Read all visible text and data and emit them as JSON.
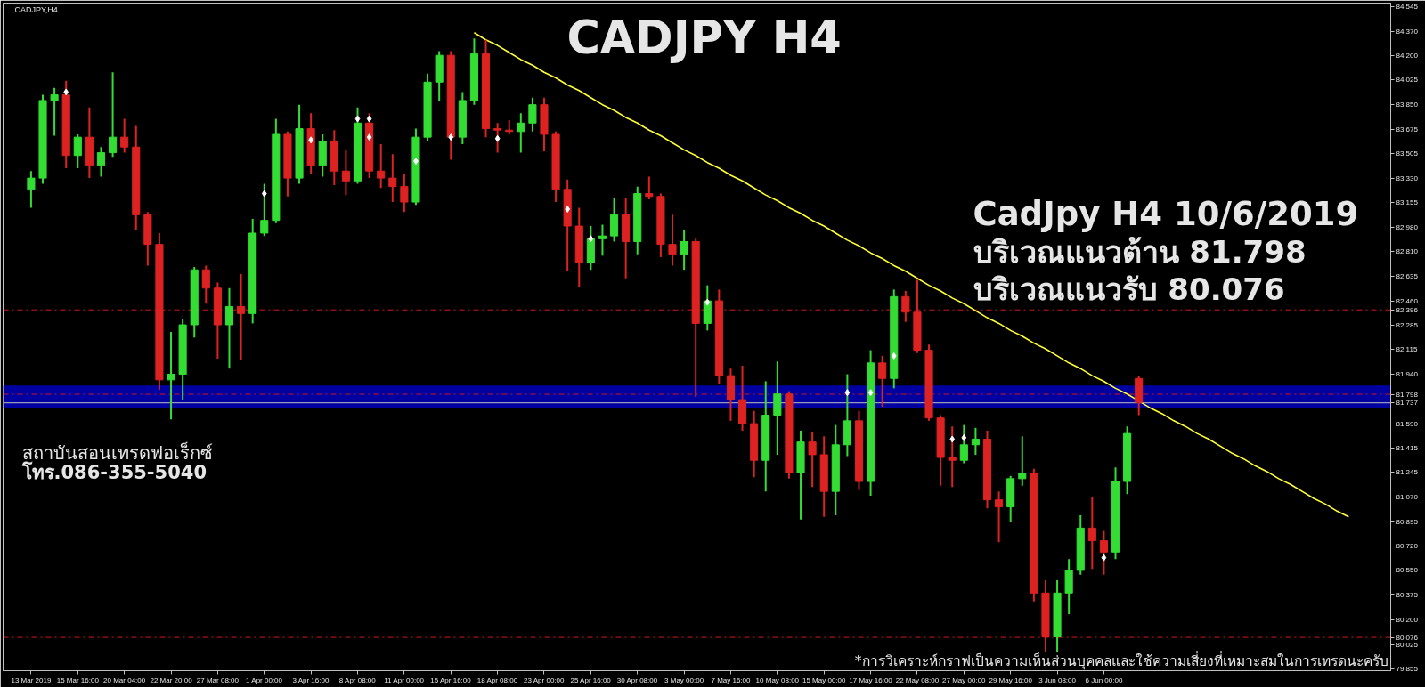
{
  "chart_data": {
    "type": "candlestick",
    "title": "CADJPY  H4",
    "ylim": [
      79.84,
      84.57
    ],
    "yticks": [
      84.545,
      {
        "value": 84.37,
        "label": "84.370"
      },
      {
        "value": 84.2,
        "label": "84.200"
      },
      84.025,
      {
        "value": 83.85,
        "label": "83.850"
      },
      83.675,
      83.505,
      {
        "value": 83.33,
        "label": "83.330"
      },
      83.155,
      {
        "value": 82.98,
        "label": "82.980"
      },
      {
        "value": 82.81,
        "label": "82.810"
      },
      82.635,
      {
        "value": 82.46,
        "label": "82.460"
      },
      82.285,
      82.115,
      {
        "value": 81.94,
        "label": "81.940"
      },
      {
        "value": 81.59,
        "label": "81.590"
      },
      81.415,
      81.245,
      {
        "value": 81.07,
        "label": "81.070"
      },
      80.895,
      {
        "value": 80.72,
        "label": "80.720"
      },
      {
        "value": 80.55,
        "label": "80.550"
      },
      80.375,
      {
        "value": 80.2,
        "label": "80.200"
      },
      80.025,
      79.855
    ],
    "categories": [
      "13 Mar 2019",
      null,
      null,
      null,
      "15 Mar 16:00",
      null,
      null,
      null,
      "20 Mar 04:00",
      null,
      null,
      null,
      "22 Mar 20:00",
      null,
      null,
      null,
      "27 Mar 08:00",
      null,
      null,
      null,
      "1 Apr 00:00",
      null,
      null,
      null,
      "3 Apr 16:00",
      null,
      null,
      null,
      "8 Apr 08:00",
      null,
      null,
      null,
      "11 Apr 00:00",
      null,
      null,
      null,
      "15 Apr 16:00",
      null,
      null,
      null,
      "18 Apr 08:00",
      null,
      null,
      null,
      "23 Apr 00:00",
      null,
      null,
      null,
      "25 Apr 16:00",
      null,
      null,
      null,
      "30 Apr 08:00",
      null,
      null,
      null,
      "3 May 00:00",
      null,
      null,
      null,
      "7 May 16:00",
      null,
      null,
      null,
      "10 May 08:00",
      null,
      null,
      null,
      "15 May 00:00",
      null,
      null,
      null,
      "17 May 16:00",
      null,
      null,
      null,
      "22 May 08:00",
      null,
      null,
      null,
      "27 May 00:00",
      null,
      null,
      null,
      "29 May 16:00",
      null,
      null,
      null,
      "3 Jun 08:00",
      null,
      null,
      null,
      "6 Jun 00:00",
      null,
      null,
      null,
      null,
      null,
      null,
      null,
      null,
      null,
      null,
      null,
      null,
      null,
      null,
      null,
      null,
      null,
      null,
      null,
      null,
      null,
      null,
      null,
      null
    ],
    "ohlc": [
      [
        83.25,
        83.38,
        83.12,
        83.33
      ],
      [
        83.33,
        83.92,
        83.29,
        83.88
      ],
      [
        83.88,
        83.97,
        83.63,
        83.92
      ],
      [
        83.92,
        84.02,
        83.4,
        83.49
      ],
      [
        83.49,
        83.64,
        83.4,
        83.62
      ],
      [
        83.62,
        83.83,
        83.33,
        83.42
      ],
      [
        83.42,
        83.55,
        83.34,
        83.51
      ],
      [
        83.51,
        84.08,
        83.48,
        83.62
      ],
      [
        83.62,
        83.75,
        83.51,
        83.55
      ],
      [
        83.55,
        83.7,
        82.96,
        83.07
      ],
      [
        83.07,
        83.09,
        82.71,
        82.86
      ],
      [
        82.86,
        82.94,
        81.83,
        81.9
      ],
      [
        81.9,
        82.24,
        81.62,
        81.94
      ],
      [
        81.94,
        82.33,
        81.76,
        82.29
      ],
      [
        82.29,
        82.7,
        82.2,
        82.68
      ],
      [
        82.68,
        82.71,
        82.44,
        82.55
      ],
      [
        82.55,
        82.59,
        82.05,
        82.29
      ],
      [
        82.29,
        82.55,
        81.98,
        82.42
      ],
      [
        82.42,
        82.65,
        82.04,
        82.37
      ],
      [
        82.37,
        83.04,
        82.3,
        82.94
      ],
      [
        82.94,
        83.29,
        82.92,
        83.03
      ],
      [
        83.03,
        83.75,
        83.01,
        83.64
      ],
      [
        83.64,
        83.66,
        83.2,
        83.33
      ],
      [
        83.33,
        83.85,
        83.29,
        83.68
      ],
      [
        83.68,
        83.79,
        83.36,
        83.42
      ],
      [
        83.42,
        83.64,
        83.34,
        83.59
      ],
      [
        83.59,
        83.67,
        83.28,
        83.38
      ],
      [
        83.38,
        83.53,
        83.21,
        83.31
      ],
      [
        83.31,
        83.83,
        83.29,
        83.72
      ],
      [
        83.72,
        83.79,
        83.33,
        83.38
      ],
      [
        83.38,
        83.57,
        83.26,
        83.33
      ],
      [
        83.33,
        83.5,
        83.16,
        83.27
      ],
      [
        83.27,
        83.36,
        83.09,
        83.16
      ],
      [
        83.16,
        83.68,
        83.14,
        83.62
      ],
      [
        83.62,
        84.07,
        83.59,
        84.01
      ],
      [
        84.01,
        84.23,
        83.88,
        84.2
      ],
      [
        84.2,
        84.23,
        83.46,
        83.62
      ],
      [
        83.62,
        83.94,
        83.57,
        83.88
      ],
      [
        83.88,
        84.32,
        83.85,
        84.21
      ],
      [
        84.21,
        84.31,
        83.62,
        83.68
      ],
      [
        83.68,
        83.72,
        83.51,
        83.67
      ],
      [
        83.67,
        83.74,
        83.64,
        83.66
      ],
      [
        83.66,
        83.79,
        83.51,
        83.72
      ],
      [
        83.72,
        83.9,
        83.66,
        83.85
      ],
      [
        83.85,
        83.9,
        83.52,
        83.64
      ],
      [
        83.64,
        83.66,
        83.16,
        83.25
      ],
      [
        83.25,
        83.32,
        82.67,
        82.99
      ],
      [
        82.99,
        83.12,
        82.56,
        82.73
      ],
      [
        82.73,
        82.99,
        82.68,
        82.9
      ],
      [
        82.9,
        83.0,
        82.78,
        82.92
      ],
      [
        82.92,
        83.19,
        82.88,
        83.07
      ],
      [
        83.07,
        83.19,
        82.62,
        82.88
      ],
      [
        82.88,
        83.27,
        82.79,
        83.22
      ],
      [
        83.22,
        83.34,
        83.18,
        83.2
      ],
      [
        83.2,
        83.22,
        82.77,
        82.86
      ],
      [
        82.86,
        83.07,
        82.71,
        82.79
      ],
      [
        82.79,
        82.96,
        82.68,
        82.88
      ],
      [
        82.88,
        82.9,
        81.78,
        82.3
      ],
      [
        82.3,
        82.57,
        82.25,
        82.46
      ],
      [
        82.46,
        82.54,
        81.87,
        81.93
      ],
      [
        81.93,
        81.98,
        81.61,
        81.76
      ],
      [
        81.76,
        82.0,
        81.54,
        81.59
      ],
      [
        81.59,
        81.68,
        81.21,
        81.33
      ],
      [
        81.33,
        81.89,
        81.11,
        81.65
      ],
      [
        81.65,
        82.03,
        81.37,
        81.8
      ],
      [
        81.8,
        81.82,
        81.2,
        81.24
      ],
      [
        81.24,
        81.54,
        80.91,
        81.46
      ],
      [
        81.46,
        81.53,
        81.14,
        81.37
      ],
      [
        81.37,
        81.5,
        80.93,
        81.11
      ],
      [
        81.11,
        81.58,
        80.94,
        81.44
      ],
      [
        81.44,
        81.94,
        81.36,
        81.61
      ],
      [
        81.61,
        81.68,
        81.12,
        81.18
      ],
      [
        81.18,
        82.11,
        81.08,
        82.02
      ],
      [
        82.02,
        82.07,
        81.71,
        81.91
      ],
      [
        81.91,
        82.54,
        81.84,
        82.49
      ],
      [
        82.49,
        82.53,
        82.31,
        82.38
      ],
      [
        82.38,
        82.61,
        82.09,
        82.11
      ],
      [
        82.11,
        82.15,
        81.61,
        81.63
      ],
      [
        81.63,
        81.65,
        81.15,
        81.35
      ],
      [
        81.35,
        81.57,
        81.14,
        81.33
      ],
      [
        81.33,
        81.58,
        81.31,
        81.44
      ],
      [
        81.44,
        81.56,
        81.37,
        81.48
      ],
      [
        81.48,
        81.54,
        80.99,
        81.05
      ],
      [
        81.05,
        81.11,
        80.75,
        81.0
      ],
      [
        81.0,
        81.22,
        80.89,
        81.2
      ],
      [
        81.2,
        81.5,
        81.15,
        81.24
      ],
      [
        81.24,
        81.27,
        80.33,
        80.39
      ],
      [
        80.39,
        80.48,
        79.97,
        80.08
      ],
      [
        80.08,
        80.48,
        79.97,
        80.39
      ],
      [
        80.39,
        80.63,
        80.24,
        80.55
      ],
      [
        80.55,
        80.94,
        80.52,
        80.85
      ],
      [
        80.85,
        81.07,
        80.56,
        80.76
      ],
      [
        80.76,
        80.83,
        80.52,
        80.68
      ],
      [
        80.68,
        81.28,
        80.63,
        81.18
      ],
      [
        81.18,
        81.57,
        81.09,
        81.52
      ],
      [
        81.91,
        81.93,
        81.65,
        81.74
      ],
      null,
      null,
      null,
      null,
      null,
      null,
      null,
      null,
      null,
      null,
      null,
      null,
      null,
      null,
      null,
      null,
      null,
      null,
      null,
      null,
      null
    ],
    "colors": [
      "#33dd33",
      "#33dd33",
      "#33dd33",
      "#dd2222",
      "#33dd33",
      "#dd2222",
      "#33dd33",
      "#33dd33",
      "#dd2222",
      "#dd2222",
      "#dd2222",
      "#dd2222",
      "#33dd33",
      "#33dd33",
      "#33dd33",
      "#dd2222",
      "#dd2222",
      "#33dd33",
      "#dd2222",
      "#33dd33",
      "#33dd33",
      "#33dd33",
      "#dd2222",
      "#33dd33",
      "#dd2222",
      "#33dd33",
      "#dd2222",
      "#dd2222",
      "#33dd33",
      "#dd2222",
      "#dd2222",
      "#dd2222",
      "#dd2222",
      "#33dd33",
      "#33dd33",
      "#33dd33",
      "#dd2222",
      "#33dd33",
      "#33dd33",
      "#dd2222",
      "#dd2222",
      "#dd2222",
      "#33dd33",
      "#33dd33",
      "#dd2222",
      "#dd2222",
      "#dd2222",
      "#dd2222",
      "#33dd33",
      "#33dd33",
      "#33dd33",
      "#dd2222",
      "#33dd33",
      "#dd2222",
      "#dd2222",
      "#dd2222",
      "#33dd33",
      "#dd2222",
      "#33dd33",
      "#dd2222",
      "#dd2222",
      "#dd2222",
      "#dd2222",
      "#33dd33",
      "#33dd33",
      "#dd2222",
      "#33dd33",
      "#dd2222",
      "#dd2222",
      "#33dd33",
      "#33dd33",
      "#dd2222",
      "#33dd33",
      "#dd2222",
      "#33dd33",
      "#dd2222",
      "#dd2222",
      "#dd2222",
      "#dd2222",
      "#dd2222",
      "#33dd33",
      "#33dd33",
      "#dd2222",
      "#dd2222",
      "#33dd33",
      "#33dd33",
      "#dd2222",
      "#dd2222",
      "#33dd33",
      "#33dd33",
      "#33dd33",
      "#dd2222",
      "#dd2222",
      "#33dd33",
      "#33dd33",
      "#dd2222",
      null,
      null,
      null,
      null,
      null,
      null,
      null,
      null,
      null,
      null,
      null,
      null,
      null,
      null,
      null,
      null,
      null,
      null,
      null,
      null,
      null
    ],
    "series": [
      {
        "type": "line",
        "color": "#ffff33",
        "values": [
          null,
          null,
          null,
          null,
          null,
          null,
          null,
          null,
          null,
          null,
          null,
          null,
          null,
          null,
          null,
          null,
          null,
          null,
          null,
          null,
          null,
          null,
          null,
          null,
          null,
          null,
          null,
          null,
          null,
          null,
          null,
          null,
          null,
          null,
          null,
          null,
          null,
          null,
          84.36,
          84.31,
          84.27,
          84.22,
          84.17,
          84.13,
          84.08,
          84.04,
          83.99,
          83.95,
          83.9,
          83.85,
          83.81,
          83.76,
          83.72,
          83.67,
          83.63,
          83.58,
          83.53,
          83.49,
          83.44,
          83.4,
          83.35,
          83.31,
          83.26,
          83.21,
          83.17,
          83.12,
          83.08,
          83.03,
          82.99,
          82.94,
          82.89,
          82.85,
          82.8,
          82.76,
          82.71,
          82.67,
          82.62,
          82.57,
          82.53,
          82.48,
          82.44,
          82.39,
          82.34,
          82.3,
          82.25,
          82.21,
          82.16,
          82.12,
          82.07,
          82.02,
          81.98,
          81.93,
          81.89,
          81.84,
          81.8,
          81.75,
          81.7,
          81.66,
          81.61,
          81.57,
          81.52,
          81.48,
          81.43,
          81.38,
          81.34,
          81.29,
          81.25,
          81.2,
          81.16,
          81.11,
          81.06,
          81.02,
          80.97,
          80.93,
          null,
          null,
          null
        ]
      },
      {
        "type": "scatter",
        "marker": "diamond",
        "color": "#ffffff",
        "values": [
          null,
          null,
          null,
          83.94,
          null,
          null,
          null,
          null,
          null,
          null,
          null,
          null,
          null,
          null,
          null,
          null,
          null,
          null,
          null,
          null,
          83.22,
          null,
          null,
          null,
          83.6,
          null,
          null,
          null,
          83.75,
          83.75,
          null,
          null,
          null,
          83.45,
          null,
          null,
          83.62,
          null,
          null,
          null,
          83.61,
          null,
          null,
          null,
          null,
          null,
          83.11,
          null,
          82.9,
          null,
          null,
          null,
          null,
          null,
          null,
          null,
          null,
          null,
          82.45,
          null,
          null,
          null,
          null,
          null,
          null,
          null,
          null,
          null,
          null,
          null,
          81.81,
          null,
          81.81,
          null,
          82.07,
          null,
          null,
          null,
          null,
          81.48,
          81.49,
          null,
          null,
          null,
          null,
          null,
          null,
          null,
          null,
          null,
          null,
          null,
          80.64,
          null,
          null,
          null,
          null,
          null,
          null,
          null,
          null,
          null,
          null,
          null,
          null,
          null,
          null,
          null,
          null,
          null,
          null,
          null,
          null,
          null,
          null,
          null,
          null
        ]
      },
      {
        "type": "scatter",
        "marker": "diamond",
        "color": "#ffffff",
        "values": [
          null,
          null,
          null,
          null,
          null,
          null,
          null,
          null,
          null,
          null,
          null,
          null,
          null,
          null,
          null,
          null,
          null,
          null,
          null,
          null,
          null,
          null,
          null,
          null,
          null,
          null,
          null,
          null,
          null,
          83.62,
          null,
          null,
          null,
          null,
          null,
          null,
          null,
          null,
          null,
          null,
          null,
          null,
          null,
          null,
          null,
          null,
          null,
          null,
          null,
          null,
          null,
          null,
          null,
          null,
          null,
          null,
          null,
          null,
          null,
          null,
          null,
          null,
          null,
          null,
          null,
          null,
          null,
          null,
          null,
          null,
          null,
          null,
          null,
          null,
          null,
          null,
          null,
          null,
          null,
          null,
          null,
          null,
          null,
          null,
          null,
          null,
          null,
          null,
          null,
          null,
          null,
          null,
          null,
          null,
          null,
          null,
          null,
          null,
          null,
          null,
          null,
          null,
          null,
          null,
          null,
          null,
          null,
          null,
          null,
          null,
          null,
          null,
          null,
          null,
          null,
          null,
          null
        ]
      }
    ],
    "bands": [
      {
        "axis": "y",
        "from": 81.7,
        "to": 81.86,
        "color": "#0000a0"
      }
    ],
    "ref_lines": [
      {
        "axis": "y",
        "value": 82.396,
        "label": "82.396",
        "color": "#d01818",
        "line_style": "dashdot"
      },
      {
        "axis": "y",
        "value": 81.798,
        "label": "81.798",
        "color": "#d01818",
        "line_style": "dashdot"
      },
      {
        "axis": "y",
        "value": 81.737,
        "label": "81.737",
        "color": "#c0c0c0"
      },
      {
        "axis": "y",
        "value": 80.076,
        "label": "80.076",
        "color": "#d01818",
        "line_style": "dashdot"
      }
    ],
    "annotations": [
      "CADJPY,H4",
      "CadJpy H4 10/6/2019",
      "บริเวณแนวต้าน 81.798",
      "บริเวณแนวรับ 80.076",
      "สถาบันสอนเทรดฟอเร็กซ์",
      "โทร.086-355-5040",
      "*การวิเคราะห์กราฟเป็นความเห็นส่วนบุคคลและใช้ความเสี่ยงที่เหมาะสมในการเทรดนะครับ"
    ]
  }
}
